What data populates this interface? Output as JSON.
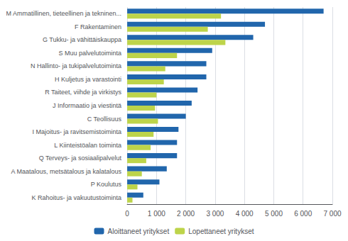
{
  "chart_data": {
    "type": "bar",
    "orientation": "horizontal",
    "categories": [
      "M Ammatillinen, tieteellinen ja tekninen...",
      "F Rakentaminen",
      "G Tukku- ja vähittäiskauppa",
      "S Muu palvelutoiminta",
      "N Hallinto- ja tukipalvelutoiminta",
      "H Kuljetus ja varastointi",
      "R Taiteet, viihde ja virkistys",
      "J Informaatio ja viestintä",
      "C Teollisuus",
      "I Majoitus- ja ravitsemistoiminta",
      "L Kiinteistöalan toiminta",
      "Q Terveys- ja sosiaalipalvelut",
      "A Maatalous, metsätalous ja kalatalous",
      "P Koulutus",
      "K Rahoitus- ja vakuutustoiminta"
    ],
    "series": [
      {
        "name": "Aloittaneet yritykset",
        "color": "#2166AC",
        "values": [
          6700,
          4700,
          4300,
          2900,
          2700,
          2700,
          2400,
          2200,
          2000,
          1750,
          1700,
          1700,
          1350,
          1100,
          550
        ]
      },
      {
        "name": "Lopettaneet yritykset",
        "color": "#BDD44A",
        "values": [
          3200,
          2750,
          3350,
          1700,
          1300,
          1250,
          1000,
          950,
          1050,
          900,
          800,
          650,
          500,
          350,
          180
        ]
      }
    ],
    "xlim": [
      0,
      7000
    ],
    "xticks": [
      0,
      {
        "value": 1000,
        "label": "1 000"
      },
      {
        "value": 2000,
        "label": "2 000"
      },
      {
        "value": 3000,
        "label": "3 000"
      },
      {
        "value": 4000,
        "label": "4 000"
      },
      {
        "value": 5000,
        "label": "5 000"
      },
      {
        "value": 6000,
        "label": "6 000"
      },
      {
        "value": 7000,
        "label": "7 000"
      }
    ],
    "grid": true,
    "legend": "bottom"
  }
}
